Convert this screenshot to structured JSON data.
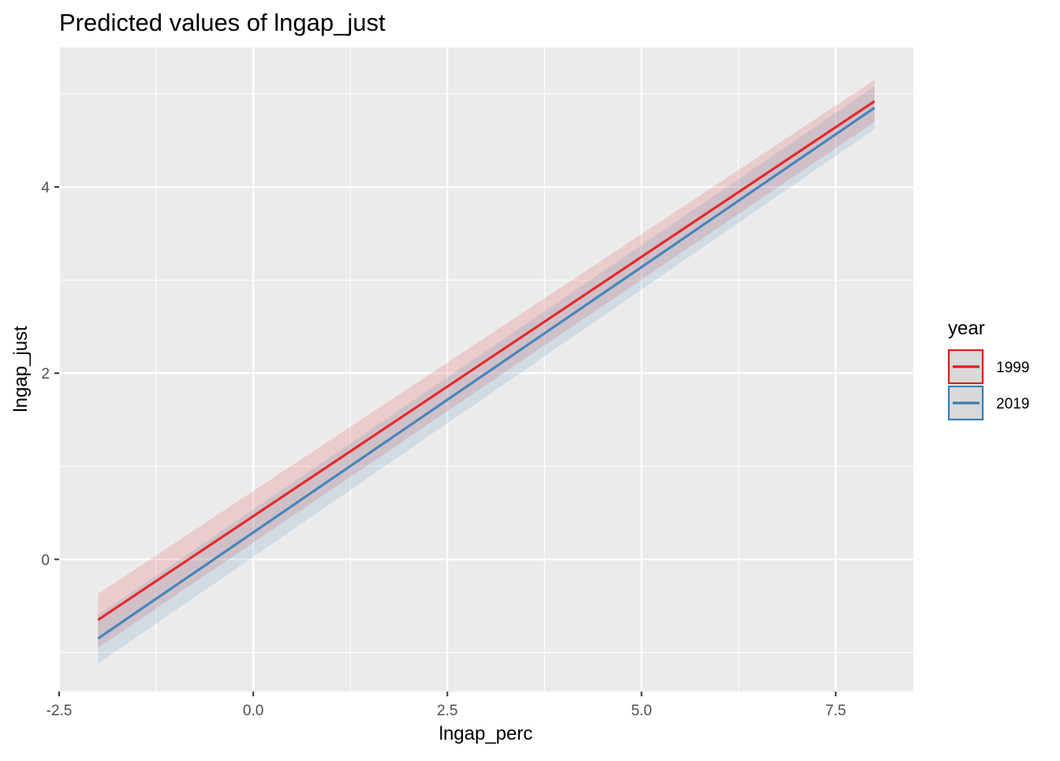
{
  "chart_data": {
    "type": "line",
    "title": "Predicted values of lngap_just",
    "xlabel": "lngap_perc",
    "ylabel": "lngap_just",
    "xlim": [
      -2.5,
      8.5
    ],
    "ylim": [
      -1.42,
      5.5
    ],
    "x_ticks": [
      "-2.5",
      "0.0",
      "2.5",
      "5.0",
      "7.5"
    ],
    "x_tick_values": [
      -2.5,
      0,
      2.5,
      5,
      7.5
    ],
    "y_ticks": [
      "0",
      "2",
      "4"
    ],
    "y_tick_values": [
      0,
      2,
      4
    ],
    "x_minor": [
      -1.25,
      1.25,
      3.75,
      6.25
    ],
    "y_minor": [
      -1,
      1,
      3,
      5
    ],
    "grid": true,
    "legend": {
      "title": "year",
      "position": "right"
    },
    "x": [
      -2,
      8
    ],
    "series": [
      {
        "name": "1999",
        "color": "#e41a1c",
        "values": [
          -0.65,
          4.92
        ],
        "ci_lower": [
          -0.95,
          4.7
        ],
        "ci_upper": [
          -0.37,
          5.15
        ]
      },
      {
        "name": "2019",
        "color": "#377eb8",
        "values": [
          -0.85,
          4.85
        ],
        "ci_lower": [
          -1.12,
          4.62
        ],
        "ci_upper": [
          -0.6,
          5.08
        ]
      }
    ]
  }
}
